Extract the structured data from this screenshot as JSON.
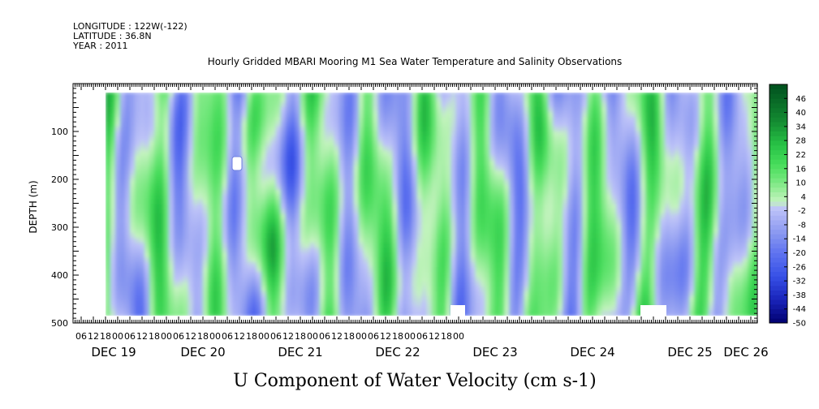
{
  "header": {
    "longitude": "LONGITUDE : 122W(-122)",
    "latitude": "LATITUDE : 36.8N",
    "year": "YEAR : 2011"
  },
  "chart_data": {
    "type": "heatmap",
    "title": "Hourly Gridded MBARI Mooring M1 Sea Water Temperature and Salinity Observations",
    "xlabel": "U Component of Water Velocity (cm s-1)",
    "ylabel": "DEPTH (m)",
    "y_range": [
      0,
      500
    ],
    "y_reversed": true,
    "y_ticks": [
      100,
      200,
      300,
      400,
      500
    ],
    "x_hour_ticks": [
      "06",
      "12",
      "18",
      "00",
      "06",
      "12",
      "18",
      "00",
      "06",
      "12",
      "18",
      "00",
      "06",
      "12",
      "18",
      "00",
      "06",
      "12",
      "18",
      "00",
      "06",
      "12",
      "18",
      "00",
      "06",
      "12",
      "18",
      "00",
      "06",
      "12",
      "18",
      "00"
    ],
    "x_day_labels": [
      "DEC 19",
      "DEC 20",
      "DEC 21",
      "DEC 22",
      "DEC 23",
      "DEC 24",
      "DEC 25",
      "DEC 26"
    ],
    "colorbar": {
      "levels": [
        "46",
        "40",
        "34",
        "28",
        "22",
        "16",
        "10",
        "4",
        "-2",
        "-8",
        "-14",
        "-20",
        "-26",
        "-32",
        "-38",
        "-44",
        "-50"
      ],
      "range": [
        -50,
        52
      ],
      "colors": {
        "dark_blue": "#000066",
        "blue": "#3344dd",
        "light_blue": "#aab0f0",
        "light_green": "#b8f0b0",
        "green": "#33dd55",
        "dark_green": "#005522"
      }
    },
    "data_summary": {
      "value_range_cm_s": [
        -20,
        28
      ],
      "dominant_pattern": "alternating vertical bands of eastward (green) and westward (blue) velocity",
      "missing_data": "small gaps near 160 m on DEC 20 and near the bottom at DEC 23 00 and DEC 25 00"
    }
  }
}
